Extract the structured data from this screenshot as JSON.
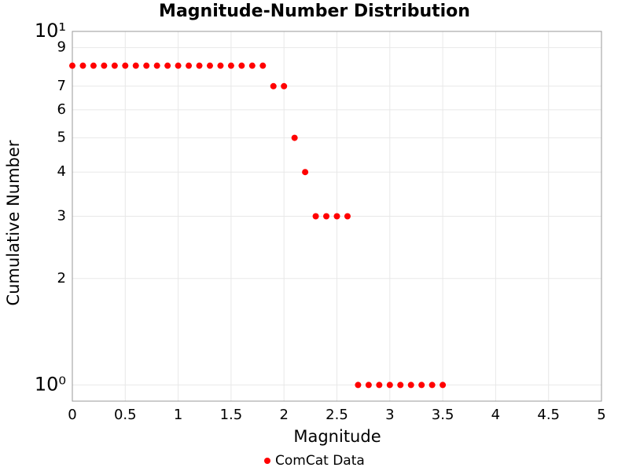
{
  "chart_data": {
    "type": "scatter",
    "title": "Magnitude-Number Distribution",
    "x_label": "Magnitude",
    "y_label": "Cumulative Number",
    "log_y": true,
    "grid": true,
    "legend": "bottom",
    "series": [
      {
        "name": "ComCat Data",
        "color": "#ff0000",
        "x": [
          0,
          0.1,
          0.2,
          0.3,
          0.4,
          0.5,
          0.6,
          0.7,
          0.8,
          0.9,
          1.0,
          1.1,
          1.2,
          1.3,
          1.4,
          1.5,
          1.6,
          1.7,
          1.8,
          1.9,
          2.0,
          2.1,
          2.2,
          2.3,
          2.4,
          2.5,
          2.6,
          2.7,
          2.8,
          2.9,
          3.0,
          3.1,
          3.2,
          3.3,
          3.4,
          3.5
        ],
        "values": [
          8,
          8,
          8,
          8,
          8,
          8,
          8,
          8,
          8,
          8,
          8,
          8,
          8,
          8,
          8,
          8,
          8,
          8,
          8,
          7,
          7,
          5,
          4,
          3,
          3,
          3,
          3,
          1,
          1,
          1,
          1,
          1,
          1,
          1,
          1,
          1
        ]
      }
    ],
    "xlim": [
      0,
      5
    ],
    "xticks": [
      0,
      0.5,
      1,
      1.5,
      2,
      2.5,
      3,
      3.5,
      4,
      4.5,
      5
    ],
    "ylim": [
      0.9,
      10
    ],
    "yticks": [
      {
        "value": 1,
        "label": "10⁰"
      },
      2,
      3,
      4,
      5,
      6,
      7,
      {
        "value": 10,
        "label": "10¹"
      },
      9
    ]
  }
}
